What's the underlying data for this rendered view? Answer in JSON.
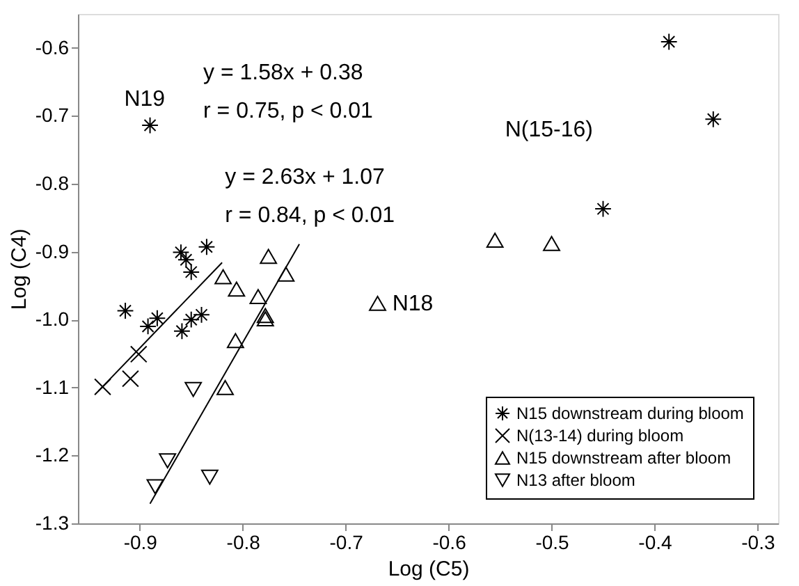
{
  "chart_data": {
    "type": "scatter",
    "xlabel": "Log (C5)",
    "ylabel": "Log (C4)",
    "xlim": [
      -0.96,
      -0.28
    ],
    "ylim": [
      -1.3,
      -0.55
    ],
    "xticks": [
      -0.9,
      -0.8,
      -0.7,
      -0.6,
      -0.5,
      -0.4,
      -0.3
    ],
    "yticks": [
      -1.3,
      -1.2,
      -1.1,
      {
        "value": -1.0,
        "label": "-1.0"
      },
      -0.9,
      -0.8,
      -0.7,
      -0.6
    ],
    "grid": false,
    "legend": "bottom right",
    "series": [
      {
        "name": "N15 downstream during bloom",
        "color": "#000000",
        "x": [
          -0.89,
          -0.86,
          -0.855,
          -0.85,
          -0.835,
          -0.914,
          -0.892,
          -0.883,
          -0.859,
          -0.85,
          -0.84,
          -0.386,
          -0.343,
          -0.45
        ],
        "values": [
          -0.714,
          -0.901,
          -0.912,
          -0.93,
          -0.893,
          -0.987,
          -1.01,
          -0.998,
          -1.017,
          -1.0,
          -0.993,
          -0.591,
          -0.705,
          -0.837
        ]
      },
      {
        "name": "N(13-14) during bloom",
        "color": "#000000",
        "marker": "cross",
        "x": [
          -0.936,
          -0.909,
          -0.901
        ],
        "values": [
          -1.099,
          -1.087,
          -1.051
        ]
      },
      {
        "name": "N15 downstream after bloom",
        "color": "#000000",
        "marker": "triangle",
        "x": [
          -0.775,
          -0.819,
          -0.806,
          -0.785,
          -0.758,
          -0.778,
          -0.778,
          -0.807,
          -0.817,
          -0.669,
          -0.555,
          -0.5
        ],
        "values": [
          -0.907,
          -0.937,
          -0.955,
          -0.966,
          -0.933,
          -0.994,
          -0.999,
          -1.031,
          -1.1,
          -0.976,
          -0.883,
          -0.888
        ]
      },
      {
        "name": "N13 after bloom",
        "color": "#000000",
        "marker": "triangle-down",
        "x": [
          -0.848,
          -0.873,
          -0.885,
          -0.832
        ],
        "values": [
          -1.103,
          -1.208,
          -1.246,
          -1.232
        ]
      },
      {
        "type": "line",
        "color": "#000000",
        "x": [
          -0.94,
          -0.82
        ],
        "values": [
          -1.105,
          -0.916
        ]
      },
      {
        "type": "line",
        "color": "#000000",
        "x": [
          -0.89,
          -0.745
        ],
        "values": [
          -1.271,
          -0.889
        ]
      }
    ],
    "annotations": [
      "N19",
      "N18",
      "N(15-16)",
      "y = 1.58x + 0.38",
      "r = 0.75, p < 0.01",
      "y = 2.63x + 1.07",
      "r = 0.84, p < 0.01"
    ]
  }
}
